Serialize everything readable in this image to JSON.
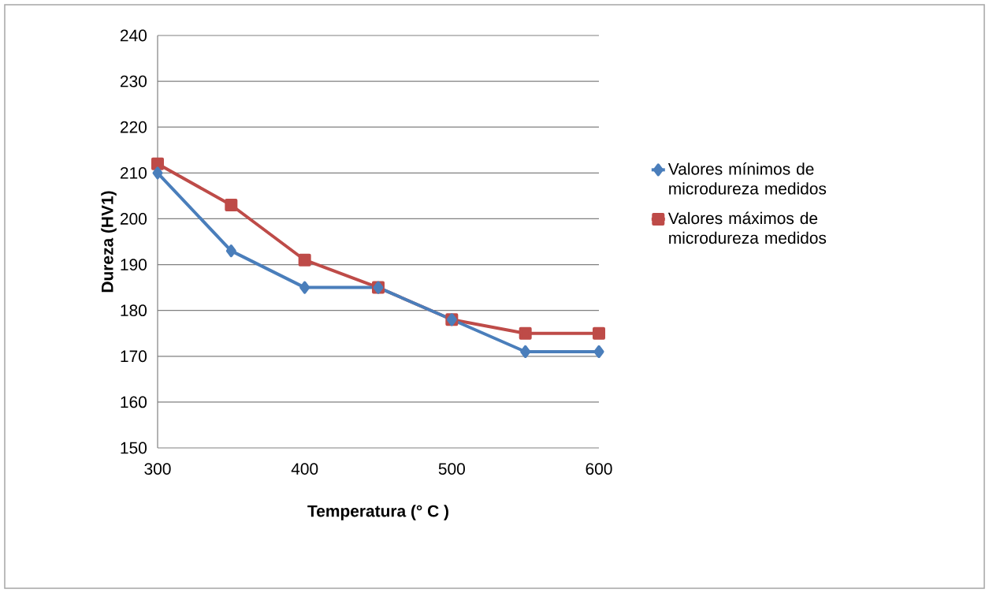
{
  "chart_data": {
    "type": "line",
    "xlabel": "Temperatura (° C )",
    "ylabel": "Dureza (HV1)",
    "x": [
      300,
      350,
      400,
      450,
      500,
      550,
      600
    ],
    "series": [
      {
        "name": "Valores mínimos de microdureza medidos",
        "color": "#4a7ebb",
        "marker": "diamond",
        "values": [
          210,
          193,
          185,
          185,
          178,
          171,
          171
        ]
      },
      {
        "name": "Valores máximos de microdureza medidos",
        "color": "#be4b48",
        "marker": "square",
        "values": [
          212,
          203,
          191,
          185,
          178,
          175,
          175
        ]
      }
    ],
    "xlim": [
      300,
      600
    ],
    "ylim": [
      150,
      240
    ],
    "xticks": [
      300,
      400,
      500,
      600
    ],
    "yticks": [
      150,
      160,
      170,
      180,
      190,
      200,
      210,
      220,
      230,
      240
    ],
    "grid": "y",
    "legend": "right",
    "line_style": "solid"
  }
}
